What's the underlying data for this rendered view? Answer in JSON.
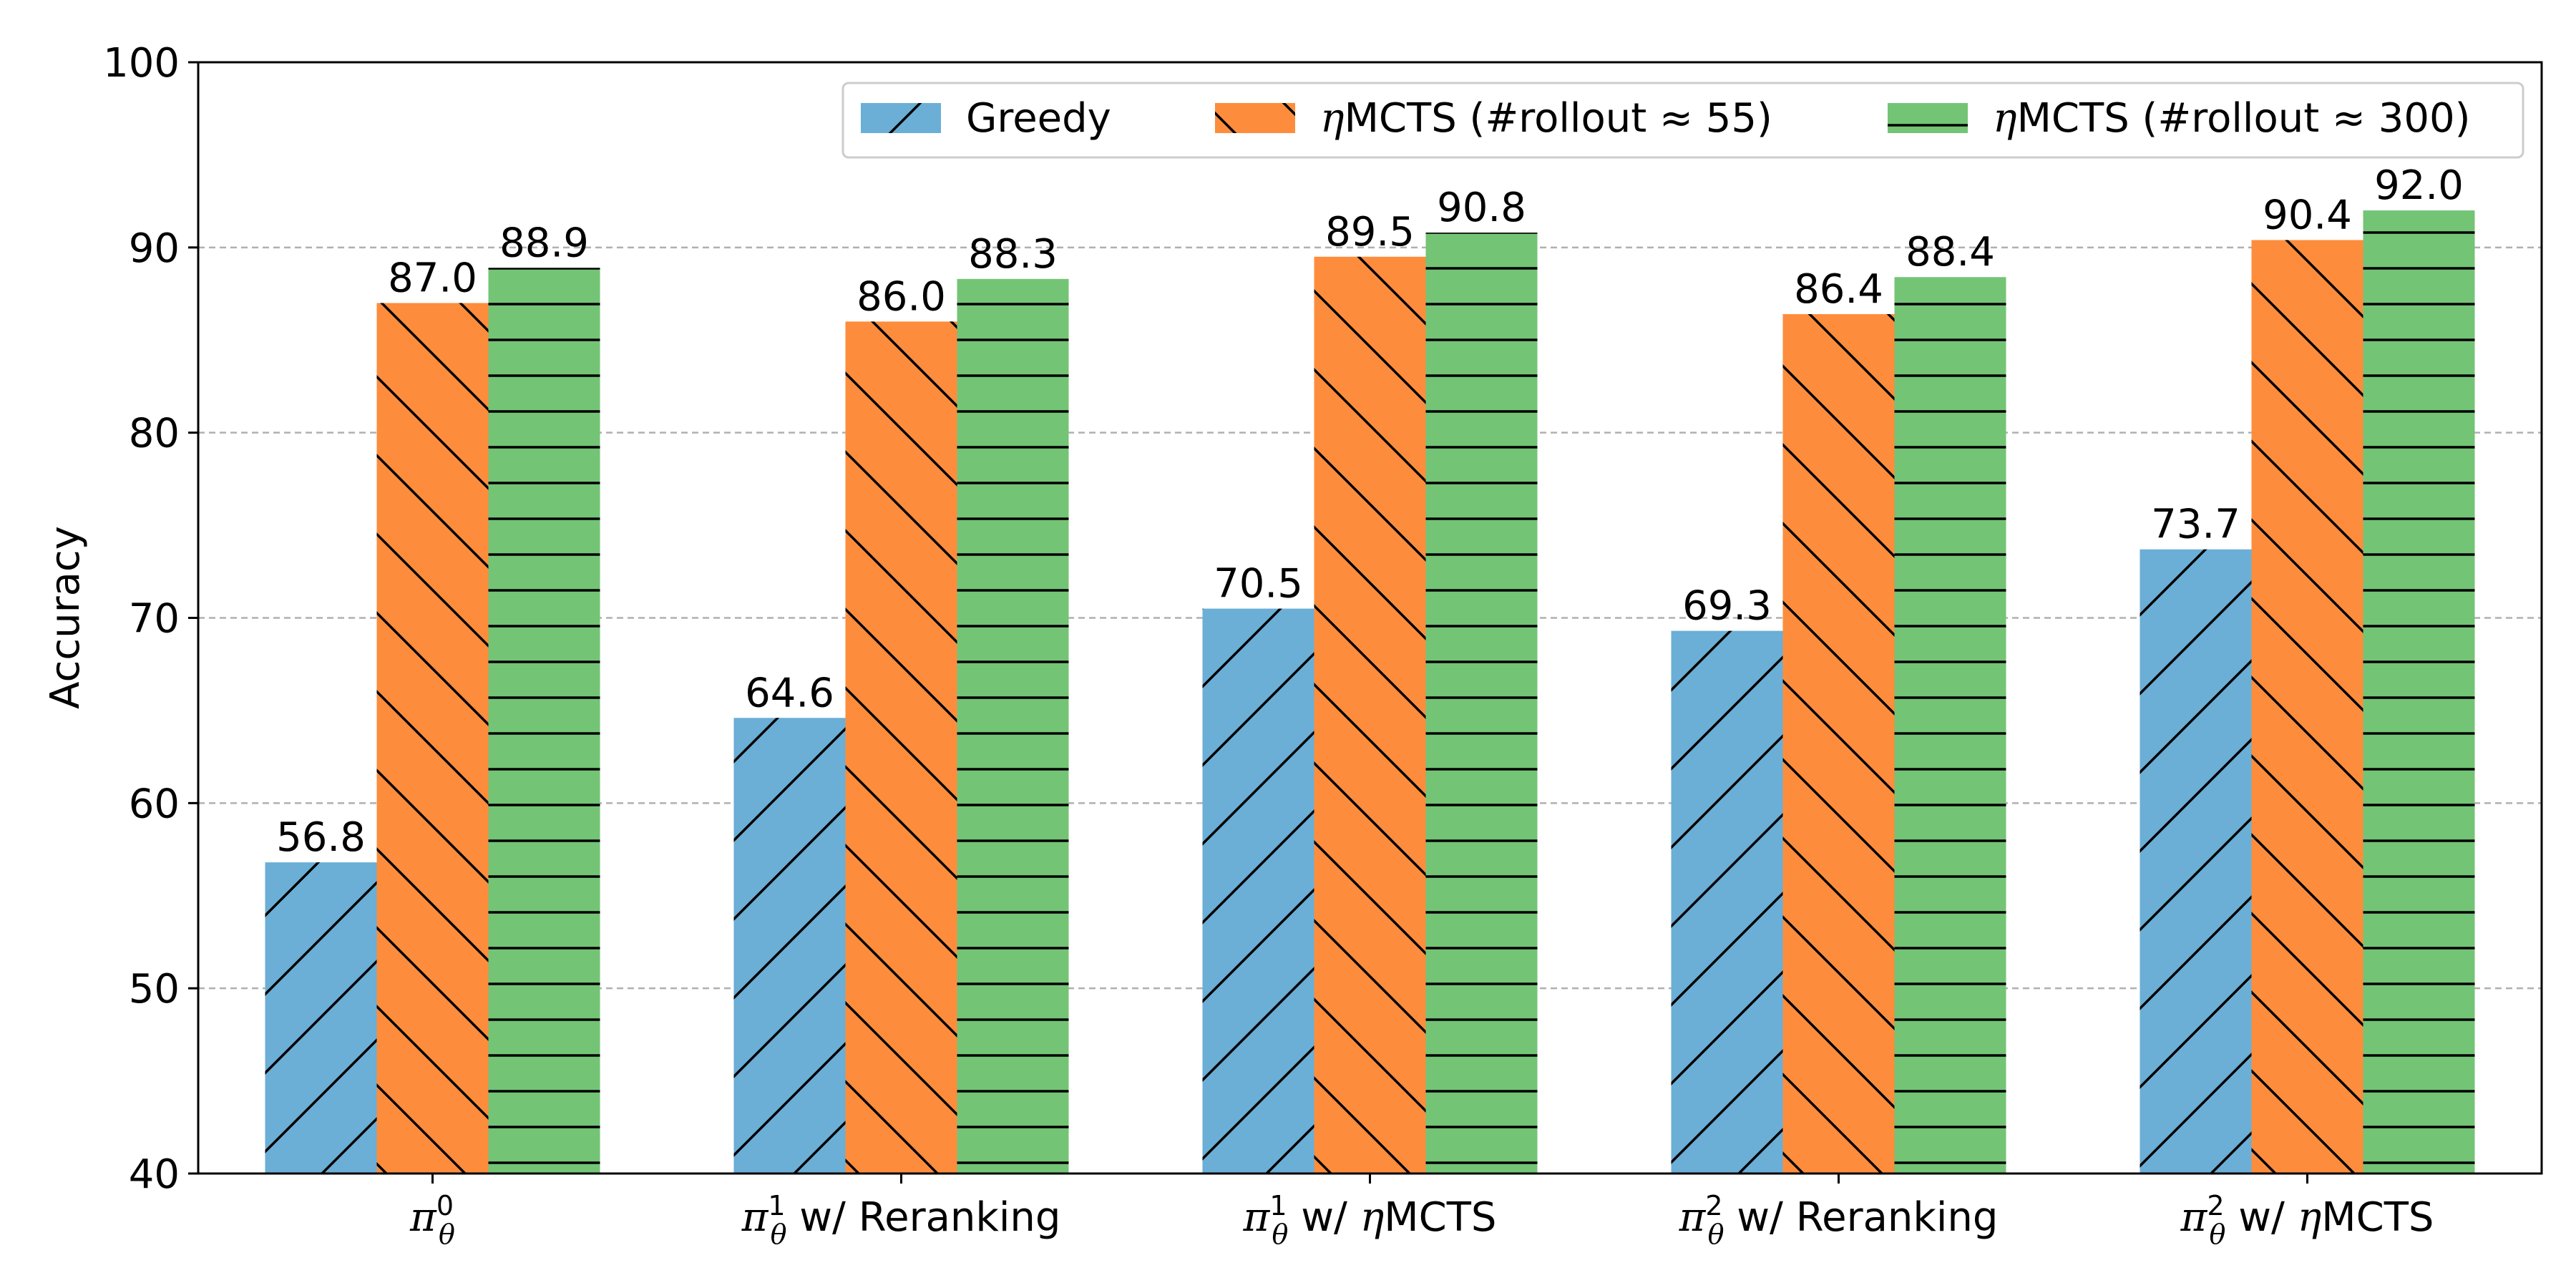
{
  "chart_data": {
    "type": "bar",
    "ylabel": "Accuracy",
    "xlabel": "",
    "ylim": [
      40,
      100
    ],
    "yticks": [
      40,
      50,
      60,
      70,
      80,
      90,
      100
    ],
    "grid": "y-dashed",
    "legend_position": "top-right",
    "categories": [
      {
        "sym": "π",
        "sup": "0",
        "sub": "θ",
        "rest": ""
      },
      {
        "sym": "π",
        "sup": "1",
        "sub": "θ",
        "rest": " w/ Reranking"
      },
      {
        "sym": "π",
        "sup": "1",
        "sub": "θ",
        "rest": " w/ ",
        "eta": true,
        "rest2": "MCTS"
      },
      {
        "sym": "π",
        "sup": "2",
        "sub": "θ",
        "rest": " w/ Reranking"
      },
      {
        "sym": "π",
        "sup": "2",
        "sub": "θ",
        "rest": " w/ ",
        "eta": true,
        "rest2": "MCTS"
      }
    ],
    "series": [
      {
        "name": "Greedy",
        "color": "#6baed6",
        "hatch": "diag-up",
        "values": [
          56.8,
          64.6,
          70.5,
          69.3,
          73.7
        ],
        "labels": [
          "56.8",
          "64.6",
          "70.5",
          "69.3",
          "73.7"
        ]
      },
      {
        "name": "MCTS (#rollout ≈ 55)",
        "prefix_eta": true,
        "color": "#fd8d3c",
        "hatch": "diag-down",
        "values": [
          87.0,
          86.0,
          89.5,
          86.4,
          90.4
        ],
        "labels": [
          "87.0",
          "86.0",
          "89.5",
          "86.4",
          "90.4"
        ]
      },
      {
        "name": "MCTS (#rollout ≈ 300)",
        "prefix_eta": true,
        "color": "#74c476",
        "hatch": "horizontal",
        "values": [
          88.9,
          88.3,
          90.8,
          88.4,
          92.0
        ],
        "labels": [
          "88.9",
          "88.3",
          "90.8",
          "88.4",
          "92.0"
        ]
      }
    ]
  }
}
